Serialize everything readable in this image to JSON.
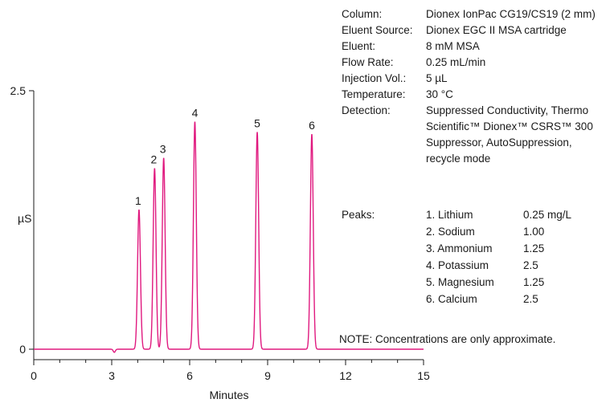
{
  "chart_data": {
    "type": "line",
    "xlabel": "Minutes",
    "ylabel": "µS",
    "xlim": [
      0,
      15
    ],
    "ylim": [
      0,
      2.5
    ],
    "x_ticks": [
      "0",
      "3",
      "6",
      "9",
      "12",
      "15"
    ],
    "y_ticks": [
      "0",
      "2.5"
    ],
    "grid": false,
    "line_color": "#e0197f",
    "baseline_dip": {
      "x": 3.1,
      "y": -0.03
    },
    "peaks": [
      {
        "label": "1",
        "x": 4.05,
        "y": 1.35
      },
      {
        "label": "2",
        "x": 4.65,
        "y": 1.75
      },
      {
        "label": "3",
        "x": 5.0,
        "y": 1.85
      },
      {
        "label": "4",
        "x": 6.2,
        "y": 2.2
      },
      {
        "label": "5",
        "x": 8.6,
        "y": 2.1
      },
      {
        "label": "6",
        "x": 10.7,
        "y": 2.08
      }
    ]
  },
  "conditions": [
    {
      "key": "Column:",
      "value": "Dionex IonPac CG19/CS19 (2 mm)"
    },
    {
      "key": "Eluent Source:",
      "value": "Dionex EGC II MSA cartridge"
    },
    {
      "key": "Eluent:",
      "value": "8 mM MSA"
    },
    {
      "key": "Flow Rate:",
      "value": "0.25 mL/min"
    },
    {
      "key": "Injection Vol.:",
      "value": "5 µL"
    },
    {
      "key": "Temperature:",
      "value": "30 °C"
    },
    {
      "key": "Detection:",
      "value": "Suppressed Conductivity, Thermo"
    },
    {
      "key": "",
      "value": "Scientific™ Dionex™ CSRS™ 300"
    },
    {
      "key": "",
      "value": "Suppressor, AutoSuppression,"
    },
    {
      "key": "",
      "value": "recycle mode"
    }
  ],
  "peaks_label": "Peaks:",
  "peak_list": [
    {
      "name": "1. Lithium",
      "conc": "0.25 mg/L"
    },
    {
      "name": "2. Sodium",
      "conc": "1.00"
    },
    {
      "name": "3. Ammonium",
      "conc": "1.25"
    },
    {
      "name": "4. Potassium",
      "conc": "2.5"
    },
    {
      "name": "5. Magnesium",
      "conc": "1.25"
    },
    {
      "name": "6. Calcium",
      "conc": "2.5"
    }
  ],
  "note": "NOTE: Concentrations are only approximate."
}
